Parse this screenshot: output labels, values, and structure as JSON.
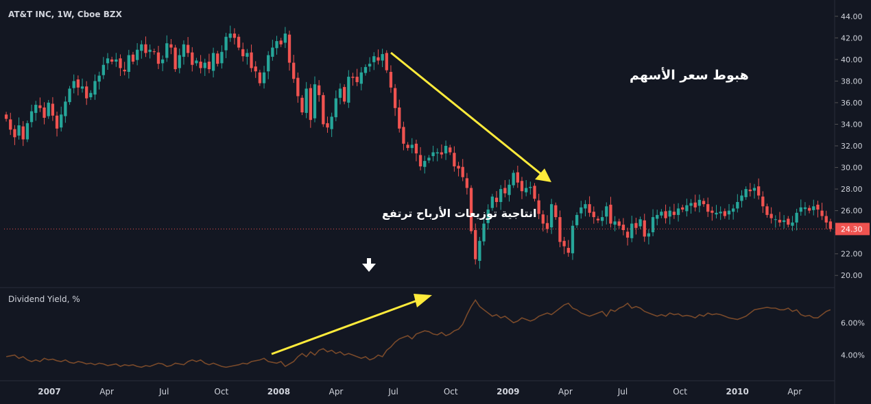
{
  "header": {
    "symbol": "AT&T INC, 1W, Cboe BZX"
  },
  "indicator": {
    "title": "Dividend Yield, %"
  },
  "annotations": {
    "price_drop": "هبوط سعر الأسهم",
    "yield_rise": "انتاجية توزيعات الأرباح ترتفع"
  },
  "colors": {
    "background": "#131722",
    "up": "#26a69a",
    "down": "#ef5350",
    "yield_line": "#7a4a2a",
    "arrow": "#ffeb3b",
    "grid": "#363a45",
    "text": "#d1d4dc"
  },
  "chart_data": [
    {
      "type": "candlestick",
      "interval": "1W",
      "ylim": [
        19,
        45
      ],
      "yticks": [
        "20.00",
        "22.00",
        "24.00",
        "26.00",
        "28.00",
        "30.00",
        "32.00",
        "34.00",
        "36.00",
        "38.00",
        "40.00",
        "42.00",
        "44.00"
      ],
      "last_price": "24.30",
      "x_labels": [
        "2007",
        "Apr",
        "Jul",
        "Oct",
        "2008",
        "Apr",
        "Jul",
        "Oct",
        "2009",
        "Apr",
        "Jul",
        "Oct",
        "2010",
        "Apr"
      ],
      "closes": [
        34.5,
        33.5,
        32.8,
        33.9,
        32.6,
        34.1,
        35.2,
        35.8,
        35.5,
        34.6,
        36.0,
        34.8,
        33.6,
        34.9,
        36.1,
        37.3,
        38.0,
        37.4,
        37.5,
        36.4,
        36.9,
        38.0,
        38.5,
        39.5,
        40.1,
        39.8,
        40.0,
        39.2,
        38.9,
        40.4,
        39.8,
        40.9,
        41.4,
        40.6,
        40.9,
        40.7,
        39.6,
        40.0,
        41.5,
        41.1,
        39.1,
        40.4,
        41.4,
        40.6,
        39.5,
        39.9,
        39.2,
        39.7,
        39.1,
        40.6,
        39.6,
        40.7,
        42.1,
        42.4,
        42.0,
        41.1,
        40.3,
        40.6,
        39.2,
        38.9,
        37.8,
        38.8,
        40.4,
        41.1,
        41.7,
        41.4,
        42.4,
        39.7,
        38.2,
        36.6,
        35.1,
        37.3,
        34.4,
        37.7,
        36.7,
        34.0,
        33.7,
        34.7,
        36.4,
        37.3,
        36.1,
        38.4,
        38.3,
        37.9,
        38.8,
        39.3,
        39.6,
        40.3,
        39.9,
        40.5,
        39.0,
        37.4,
        35.5,
        33.6,
        32.2,
        31.8,
        32.1,
        31.3,
        30.1,
        30.6,
        30.9,
        31.4,
        31.4,
        31.2,
        32.0,
        31.4,
        30.1,
        29.9,
        29.1,
        28.1,
        24.1,
        21.5,
        23.2,
        24.8,
        26.1,
        27.3,
        26.8,
        28.0,
        27.6,
        28.4,
        29.5,
        28.6,
        27.8,
        28.1,
        28.2,
        27.1,
        25.7,
        24.8,
        24.3,
        26.6,
        25.4,
        23.1,
        22.7,
        22.1,
        24.6,
        25.6,
        26.3,
        26.6,
        25.8,
        25.4,
        25.1,
        25.4,
        26.4,
        24.8,
        25.0,
        24.6,
        24.2,
        23.5,
        24.8,
        24.4,
        25.2,
        23.6,
        23.9,
        25.4,
        25.6,
        25.9,
        25.3,
        26.0,
        25.6,
        26.2,
        26.1,
        26.5,
        26.7,
        26.3,
        27.0,
        26.6,
        25.9,
        25.8,
        25.8,
        25.9,
        25.5,
        26.0,
        26.2,
        26.8,
        27.4,
        28.0,
        27.8,
        28.1,
        27.4,
        26.4,
        25.6,
        25.3,
        25.2,
        24.9,
        25.1,
        24.7,
        24.9,
        25.8,
        26.3,
        26.3,
        26.0,
        26.4,
        26.1,
        25.5,
        24.9,
        24.3
      ],
      "yield_ylim": [
        2.5,
        8.0
      ],
      "yield_ticks": [
        "4.00%",
        "6.00%"
      ],
      "yield": [
        3.9,
        3.95,
        4.0,
        3.8,
        3.9,
        3.7,
        3.6,
        3.7,
        3.6,
        3.8,
        3.7,
        3.75,
        3.65,
        3.6,
        3.7,
        3.55,
        3.5,
        3.6,
        3.55,
        3.45,
        3.5,
        3.4,
        3.5,
        3.45,
        3.35,
        3.4,
        3.45,
        3.3,
        3.4,
        3.35,
        3.4,
        3.3,
        3.25,
        3.35,
        3.3,
        3.4,
        3.5,
        3.45,
        3.3,
        3.35,
        3.5,
        3.45,
        3.4,
        3.6,
        3.7,
        3.6,
        3.7,
        3.5,
        3.4,
        3.5,
        3.4,
        3.3,
        3.25,
        3.3,
        3.35,
        3.4,
        3.5,
        3.45,
        3.6,
        3.65,
        3.7,
        3.8,
        3.6,
        3.55,
        3.5,
        3.6,
        3.3,
        3.45,
        3.6,
        3.9,
        4.1,
        3.9,
        4.2,
        4.0,
        4.3,
        4.4,
        4.2,
        4.3,
        4.1,
        4.2,
        4.0,
        4.1,
        4.0,
        3.9,
        3.8,
        3.9,
        3.7,
        3.8,
        4.0,
        3.9,
        4.3,
        4.5,
        4.8,
        5.0,
        5.1,
        5.2,
        5.0,
        5.3,
        5.4,
        5.5,
        5.45,
        5.3,
        5.25,
        5.4,
        5.2,
        5.3,
        5.5,
        5.6,
        5.9,
        6.5,
        7.0,
        7.4,
        7.0,
        6.8,
        6.6,
        6.4,
        6.5,
        6.3,
        6.4,
        6.2,
        6.0,
        6.1,
        6.3,
        6.2,
        6.1,
        6.2,
        6.4,
        6.5,
        6.6,
        6.5,
        6.7,
        6.9,
        7.1,
        7.2,
        6.9,
        6.8,
        6.6,
        6.5,
        6.4,
        6.5,
        6.6,
        6.7,
        6.4,
        6.8,
        6.7,
        6.9,
        7.0,
        7.2,
        6.9,
        7.0,
        6.9,
        6.7,
        6.6,
        6.5,
        6.4,
        6.5,
        6.4,
        6.6,
        6.5,
        6.55,
        6.4,
        6.45,
        6.4,
        6.3,
        6.5,
        6.4,
        6.6,
        6.5,
        6.55,
        6.5,
        6.4,
        6.3,
        6.25,
        6.2,
        6.3,
        6.4,
        6.6,
        6.8,
        6.85,
        6.9,
        6.95,
        6.9,
        6.9,
        6.8,
        6.8,
        6.9,
        6.7,
        6.8,
        6.5,
        6.4,
        6.45,
        6.3,
        6.3,
        6.5,
        6.7,
        6.8
      ]
    }
  ]
}
